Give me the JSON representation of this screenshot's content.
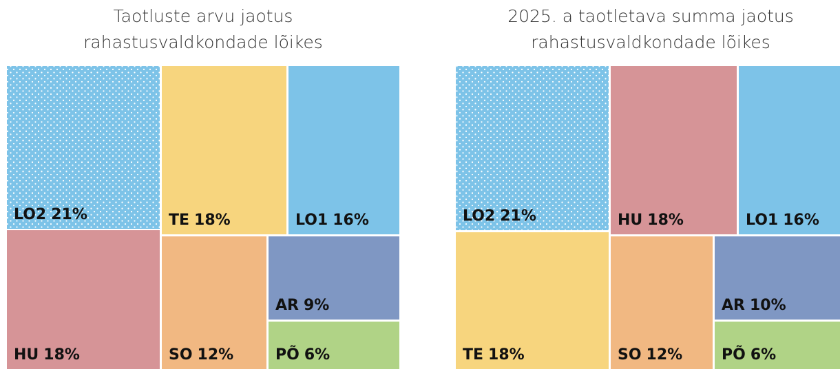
{
  "chart_data": [
    {
      "type": "treemap",
      "title": [
        "Taotluste arvu jaotus",
        "rahastusvaldkondade lõikes"
      ],
      "categories": [
        "LO2",
        "HU",
        "TE",
        "LO1",
        "SO",
        "AR",
        "PÕ"
      ],
      "values": [
        21,
        18,
        18,
        16,
        12,
        9,
        6
      ],
      "value_labels": [
        "21%",
        "18%",
        "18%",
        "16%",
        "12%",
        "9%",
        "6%"
      ],
      "colors": [
        "#7dc3e8",
        "#d69497",
        "#f7d57e",
        "#7dc3e8",
        "#f1b882",
        "#7f97c3",
        "#b0d386"
      ],
      "dotted": [
        true,
        false,
        false,
        false,
        false,
        false,
        false
      ]
    },
    {
      "type": "treemap",
      "title": [
        "2025. a taotletava summa jaotus",
        "rahastusvaldkondade lõikes"
      ],
      "categories": [
        "LO2",
        "TE",
        "HU",
        "LO1",
        "SO",
        "AR",
        "PÕ"
      ],
      "values": [
        21,
        18,
        18,
        16,
        12,
        10,
        6
      ],
      "value_labels": [
        "21%",
        "18%",
        "18%",
        "16%",
        "12%",
        "10%",
        "6%"
      ],
      "colors": [
        "#7dc3e8",
        "#f7d57e",
        "#d69497",
        "#7dc3e8",
        "#f1b882",
        "#7f97c3",
        "#b0d386"
      ],
      "dotted": [
        true,
        false,
        false,
        false,
        false,
        false,
        false
      ]
    }
  ]
}
